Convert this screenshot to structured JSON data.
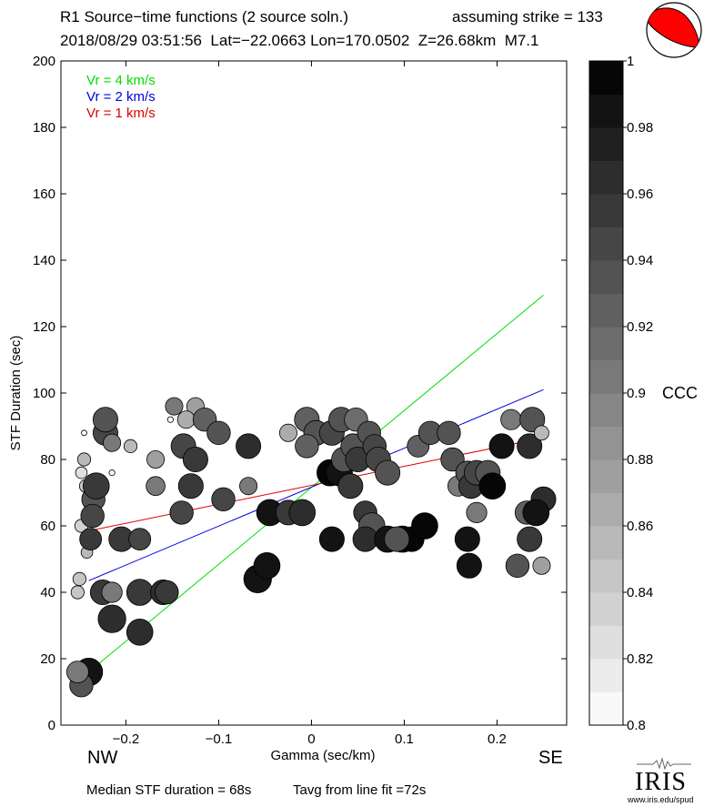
{
  "header": {
    "title": "R1 Source−time functions (2 source soln.)",
    "strike": "assuming strike = 133",
    "event_line": "2018/08/29 03:51:56  Lat=−22.0663 Lon=170.0502  Z=26.68km  M7.1"
  },
  "footer": {
    "median": "Median STF duration = 68s",
    "tavg": "Tavg from line fit =72s"
  },
  "directions": {
    "left": "NW",
    "right": "SE"
  },
  "logo": {
    "text": "IRIS",
    "url": "www.iris.edu/spud"
  },
  "colorbar": {
    "label": "CCC",
    "min": 0.8,
    "max": 1.0,
    "ticks": [
      0.8,
      0.82,
      0.84,
      0.86,
      0.88,
      0.9,
      0.92,
      0.94,
      0.96,
      0.98,
      1
    ],
    "tick_labels": [
      "0.8",
      "0.82",
      "0.84",
      "0.86",
      "0.88",
      "0.9",
      "0.92",
      "0.94",
      "0.96",
      "0.98",
      "1"
    ],
    "levels": 20
  },
  "colors": {
    "vr4": "#00dd00",
    "vr2": "#0000dd",
    "vr1": "#dd0000",
    "beachball_fill": "#ff0000"
  },
  "chart_data": {
    "type": "scatter",
    "xlabel": "Gamma (sec/km)",
    "ylabel": "STF Duration (sec)",
    "xlim": [
      -0.27,
      0.275
    ],
    "ylim": [
      0,
      200
    ],
    "x_ticks": [
      -0.2,
      -0.1,
      0,
      0.1,
      0.2
    ],
    "x_tick_labels": [
      "−0.2",
      "−0.1",
      "0",
      "0.1",
      "0.2"
    ],
    "y_ticks": [
      0,
      20,
      40,
      60,
      80,
      100,
      120,
      140,
      160,
      180,
      200
    ],
    "y_tick_labels": [
      "0",
      "20",
      "40",
      "60",
      "80",
      "100",
      "120",
      "140",
      "160",
      "180",
      "200"
    ],
    "grid": false,
    "legend_position": "top-left",
    "lines": [
      {
        "name": "Vr = 4 km/s",
        "color": "#00dd00",
        "x": [
          -0.24,
          0.25
        ],
        "y": [
          16.0,
          129.5
        ]
      },
      {
        "name": "Vr = 2 km/s",
        "color": "#0000dd",
        "x": [
          -0.24,
          0.25
        ],
        "y": [
          43.5,
          101.0
        ]
      },
      {
        "name": "Vr = 1 km/s",
        "color": "#dd0000",
        "x": [
          -0.24,
          0.25
        ],
        "y": [
          58.5,
          86.5
        ]
      }
    ],
    "points": [
      {
        "x": -0.245,
        "y": 88,
        "ccc": 0.8,
        "size": 0.15
      },
      {
        "x": -0.215,
        "y": 76,
        "ccc": 0.8,
        "size": 0.2
      },
      {
        "x": -0.152,
        "y": 92,
        "ccc": 0.8,
        "size": 0.2
      },
      {
        "x": -0.245,
        "y": 80,
        "ccc": 0.86,
        "size": 0.45
      },
      {
        "x": -0.248,
        "y": 76,
        "ccc": 0.83,
        "size": 0.4
      },
      {
        "x": -0.243,
        "y": 72,
        "ccc": 0.85,
        "size": 0.45
      },
      {
        "x": -0.248,
        "y": 60,
        "ccc": 0.84,
        "size": 0.45
      },
      {
        "x": -0.242,
        "y": 52,
        "ccc": 0.86,
        "size": 0.4
      },
      {
        "x": -0.25,
        "y": 44,
        "ccc": 0.85,
        "size": 0.45
      },
      {
        "x": -0.252,
        "y": 40,
        "ccc": 0.85,
        "size": 0.45
      },
      {
        "x": -0.235,
        "y": 68,
        "ccc": 0.94,
        "size": 0.8
      },
      {
        "x": -0.232,
        "y": 72,
        "ccc": 0.96,
        "size": 0.9
      },
      {
        "x": -0.236,
        "y": 63,
        "ccc": 0.95,
        "size": 0.8
      },
      {
        "x": -0.238,
        "y": 56,
        "ccc": 0.96,
        "size": 0.75
      },
      {
        "x": -0.222,
        "y": 88,
        "ccc": 0.95,
        "size": 0.85
      },
      {
        "x": -0.222,
        "y": 92,
        "ccc": 0.94,
        "size": 0.85
      },
      {
        "x": -0.215,
        "y": 85,
        "ccc": 0.9,
        "size": 0.6
      },
      {
        "x": -0.195,
        "y": 84,
        "ccc": 0.86,
        "size": 0.45
      },
      {
        "x": -0.205,
        "y": 56,
        "ccc": 0.96,
        "size": 0.85
      },
      {
        "x": -0.185,
        "y": 56,
        "ccc": 0.95,
        "size": 0.75
      },
      {
        "x": -0.225,
        "y": 40,
        "ccc": 0.96,
        "size": 0.85
      },
      {
        "x": -0.215,
        "y": 40,
        "ccc": 0.9,
        "size": 0.7
      },
      {
        "x": -0.215,
        "y": 32,
        "ccc": 0.97,
        "size": 0.95
      },
      {
        "x": -0.185,
        "y": 28,
        "ccc": 0.97,
        "size": 0.9
      },
      {
        "x": -0.185,
        "y": 40,
        "ccc": 0.96,
        "size": 0.9
      },
      {
        "x": -0.16,
        "y": 40,
        "ccc": 0.97,
        "size": 0.85
      },
      {
        "x": -0.156,
        "y": 40,
        "ccc": 0.96,
        "size": 0.8
      },
      {
        "x": -0.24,
        "y": 16,
        "ccc": 0.98,
        "size": 0.95
      },
      {
        "x": -0.248,
        "y": 12,
        "ccc": 0.93,
        "size": 0.8
      },
      {
        "x": -0.252,
        "y": 16,
        "ccc": 0.9,
        "size": 0.75
      },
      {
        "x": -0.168,
        "y": 80,
        "ccc": 0.88,
        "size": 0.6
      },
      {
        "x": -0.168,
        "y": 72,
        "ccc": 0.9,
        "size": 0.65
      },
      {
        "x": -0.148,
        "y": 96,
        "ccc": 0.9,
        "size": 0.6
      },
      {
        "x": -0.125,
        "y": 96,
        "ccc": 0.88,
        "size": 0.6
      },
      {
        "x": -0.135,
        "y": 92,
        "ccc": 0.87,
        "size": 0.6
      },
      {
        "x": -0.138,
        "y": 84,
        "ccc": 0.95,
        "size": 0.85
      },
      {
        "x": -0.125,
        "y": 80,
        "ccc": 0.96,
        "size": 0.85
      },
      {
        "x": -0.13,
        "y": 72,
        "ccc": 0.96,
        "size": 0.85
      },
      {
        "x": -0.14,
        "y": 64,
        "ccc": 0.95,
        "size": 0.8
      },
      {
        "x": -0.115,
        "y": 92,
        "ccc": 0.92,
        "size": 0.8
      },
      {
        "x": -0.1,
        "y": 88,
        "ccc": 0.94,
        "size": 0.8
      },
      {
        "x": -0.095,
        "y": 68,
        "ccc": 0.95,
        "size": 0.8
      },
      {
        "x": -0.068,
        "y": 84,
        "ccc": 0.97,
        "size": 0.85
      },
      {
        "x": -0.068,
        "y": 72,
        "ccc": 0.9,
        "size": 0.6
      },
      {
        "x": -0.058,
        "y": 44,
        "ccc": 0.98,
        "size": 0.95
      },
      {
        "x": -0.048,
        "y": 48,
        "ccc": 0.98,
        "size": 0.9
      },
      {
        "x": -0.045,
        "y": 64,
        "ccc": 0.98,
        "size": 0.9
      },
      {
        "x": -0.025,
        "y": 64,
        "ccc": 0.96,
        "size": 0.85
      },
      {
        "x": -0.01,
        "y": 64,
        "ccc": 0.97,
        "size": 0.9
      },
      {
        "x": -0.025,
        "y": 88,
        "ccc": 0.87,
        "size": 0.6
      },
      {
        "x": -0.005,
        "y": 92,
        "ccc": 0.92,
        "size": 0.85
      },
      {
        "x": 0.005,
        "y": 88,
        "ccc": 0.93,
        "size": 0.85
      },
      {
        "x": -0.005,
        "y": 84,
        "ccc": 0.92,
        "size": 0.8
      },
      {
        "x": 0.02,
        "y": 76,
        "ccc": 1.0,
        "size": 0.9
      },
      {
        "x": 0.03,
        "y": 76,
        "ccc": 0.98,
        "size": 0.9
      },
      {
        "x": 0.022,
        "y": 88,
        "ccc": 0.95,
        "size": 0.85
      },
      {
        "x": 0.035,
        "y": 80,
        "ccc": 0.94,
        "size": 0.85
      },
      {
        "x": 0.032,
        "y": 92,
        "ccc": 0.94,
        "size": 0.85
      },
      {
        "x": 0.048,
        "y": 92,
        "ccc": 0.91,
        "size": 0.8
      },
      {
        "x": 0.045,
        "y": 84,
        "ccc": 0.94,
        "size": 0.85
      },
      {
        "x": 0.042,
        "y": 72,
        "ccc": 0.96,
        "size": 0.85
      },
      {
        "x": 0.05,
        "y": 80,
        "ccc": 0.96,
        "size": 0.85
      },
      {
        "x": 0.058,
        "y": 64,
        "ccc": 0.96,
        "size": 0.8
      },
      {
        "x": 0.062,
        "y": 88,
        "ccc": 0.93,
        "size": 0.8
      },
      {
        "x": 0.068,
        "y": 84,
        "ccc": 0.95,
        "size": 0.8
      },
      {
        "x": 0.072,
        "y": 80,
        "ccc": 0.95,
        "size": 0.85
      },
      {
        "x": 0.082,
        "y": 76,
        "ccc": 0.94,
        "size": 0.85
      },
      {
        "x": 0.065,
        "y": 60,
        "ccc": 0.94,
        "size": 0.9
      },
      {
        "x": 0.058,
        "y": 56,
        "ccc": 0.97,
        "size": 0.85
      },
      {
        "x": 0.022,
        "y": 56,
        "ccc": 0.98,
        "size": 0.85
      },
      {
        "x": 0.082,
        "y": 56,
        "ccc": 0.98,
        "size": 0.9
      },
      {
        "x": 0.098,
        "y": 56,
        "ccc": 0.99,
        "size": 0.9
      },
      {
        "x": 0.108,
        "y": 56,
        "ccc": 0.99,
        "size": 0.85
      },
      {
        "x": 0.122,
        "y": 60,
        "ccc": 1.0,
        "size": 0.9
      },
      {
        "x": 0.092,
        "y": 56,
        "ccc": 0.94,
        "size": 0.85
      },
      {
        "x": 0.115,
        "y": 84,
        "ccc": 0.92,
        "size": 0.75
      },
      {
        "x": 0.128,
        "y": 88,
        "ccc": 0.94,
        "size": 0.8
      },
      {
        "x": 0.148,
        "y": 88,
        "ccc": 0.93,
        "size": 0.8
      },
      {
        "x": 0.152,
        "y": 80,
        "ccc": 0.94,
        "size": 0.8
      },
      {
        "x": 0.158,
        "y": 72,
        "ccc": 0.9,
        "size": 0.7
      },
      {
        "x": 0.168,
        "y": 76,
        "ccc": 0.93,
        "size": 0.8
      },
      {
        "x": 0.172,
        "y": 72,
        "ccc": 0.96,
        "size": 0.85
      },
      {
        "x": 0.178,
        "y": 76,
        "ccc": 0.95,
        "size": 0.85
      },
      {
        "x": 0.19,
        "y": 76,
        "ccc": 0.93,
        "size": 0.85
      },
      {
        "x": 0.195,
        "y": 72,
        "ccc": 0.99,
        "size": 0.9
      },
      {
        "x": 0.178,
        "y": 64,
        "ccc": 0.9,
        "size": 0.7
      },
      {
        "x": 0.168,
        "y": 56,
        "ccc": 0.98,
        "size": 0.85
      },
      {
        "x": 0.17,
        "y": 48,
        "ccc": 0.98,
        "size": 0.85
      },
      {
        "x": 0.205,
        "y": 84,
        "ccc": 0.98,
        "size": 0.85
      },
      {
        "x": 0.215,
        "y": 92,
        "ccc": 0.9,
        "size": 0.7
      },
      {
        "x": 0.235,
        "y": 84,
        "ccc": 0.97,
        "size": 0.85
      },
      {
        "x": 0.238,
        "y": 92,
        "ccc": 0.94,
        "size": 0.85
      },
      {
        "x": 0.248,
        "y": 88,
        "ccc": 0.86,
        "size": 0.5
      },
      {
        "x": 0.232,
        "y": 64,
        "ccc": 0.92,
        "size": 0.8
      },
      {
        "x": 0.25,
        "y": 68,
        "ccc": 0.97,
        "size": 0.85
      },
      {
        "x": 0.242,
        "y": 64,
        "ccc": 0.98,
        "size": 0.9
      },
      {
        "x": 0.235,
        "y": 56,
        "ccc": 0.96,
        "size": 0.85
      },
      {
        "x": 0.222,
        "y": 48,
        "ccc": 0.93,
        "size": 0.8
      },
      {
        "x": 0.248,
        "y": 48,
        "ccc": 0.88,
        "size": 0.6
      }
    ]
  }
}
